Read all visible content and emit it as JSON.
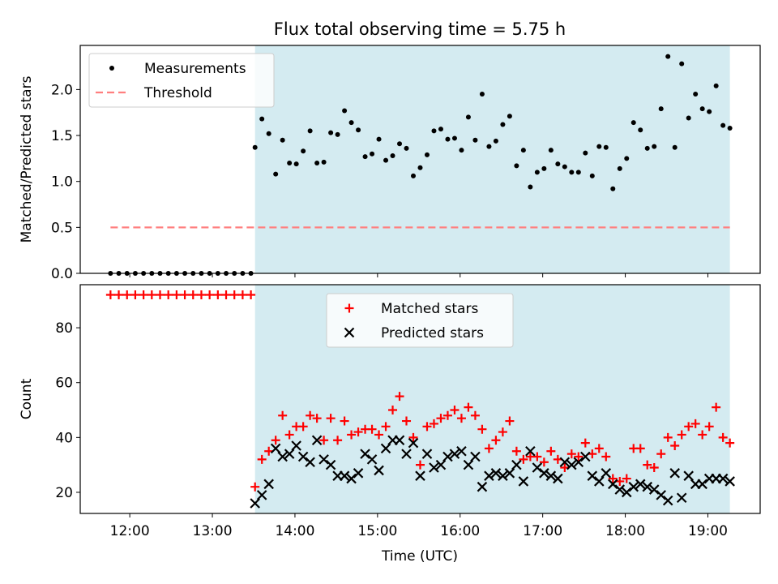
{
  "chart_data": {
    "type": "scatter",
    "title": "Flux total observing time = 5.75 h",
    "xlabel": "Time (UTC)",
    "x_tick_labels": [
      "12:00",
      "13:00",
      "14:00",
      "15:00",
      "16:00",
      "17:00",
      "18:00",
      "19:00"
    ],
    "x_ticks": [
      "12:00",
      "13:00",
      "14:00",
      "15:00",
      "16:00",
      "17:00",
      "18:00",
      "19:00"
    ],
    "xlim": [
      "11:24",
      "19:38"
    ],
    "shaded_interval": {
      "start": "13:31",
      "end": "19:16",
      "color": "#add8e6"
    },
    "colors": {
      "measurements": "#000000",
      "threshold": "#ff7f7f",
      "matched": "#ff0000",
      "predicted": "#000000",
      "shade": "#d4ebf1"
    },
    "panels": [
      {
        "ylabel": "Matched/Predicted stars",
        "ylim": [
          0,
          2.48
        ],
        "yticks": [
          0.0,
          0.5,
          1.0,
          1.5,
          2.0
        ],
        "ytick_labels": [
          "0.0",
          "0.5",
          "1.0",
          "1.5",
          "2.0"
        ],
        "legend_position": "upper-left",
        "series": [
          {
            "name": "Measurements",
            "kind": "points",
            "x": [
              "11:46",
              "11:52",
              "11:58",
              "12:04",
              "12:10",
              "12:16",
              "12:22",
              "12:28",
              "12:34",
              "12:40",
              "12:46",
              "12:52",
              "12:58",
              "13:04",
              "13:10",
              "13:16",
              "13:22",
              "13:28",
              "13:31",
              "13:36",
              "13:41",
              "13:46",
              "13:51",
              "13:56",
              "14:01",
              "14:06",
              "14:11",
              "14:16",
              "14:21",
              "14:26",
              "14:31",
              "14:36",
              "14:41",
              "14:46",
              "14:51",
              "14:56",
              "15:01",
              "15:06",
              "15:11",
              "15:16",
              "15:21",
              "15:26",
              "15:31",
              "15:36",
              "15:41",
              "15:46",
              "15:51",
              "15:56",
              "16:01",
              "16:06",
              "16:11",
              "16:16",
              "16:21",
              "16:26",
              "16:31",
              "16:36",
              "16:41",
              "16:46",
              "16:51",
              "16:56",
              "17:01",
              "17:06",
              "17:11",
              "17:16",
              "17:21",
              "17:26",
              "17:31",
              "17:36",
              "17:41",
              "17:46",
              "17:51",
              "17:56",
              "18:01",
              "18:06",
              "18:11",
              "18:16",
              "18:21",
              "18:26",
              "18:31",
              "18:36",
              "18:41",
              "18:46",
              "18:51",
              "18:56",
              "19:01",
              "19:06",
              "19:11",
              "19:16"
            ],
            "y": [
              0,
              0,
              0,
              0,
              0,
              0,
              0,
              0,
              0,
              0,
              0,
              0,
              0,
              0,
              0,
              0,
              0,
              0,
              1.37,
              1.68,
              1.52,
              1.08,
              1.45,
              1.2,
              1.19,
              1.33,
              1.55,
              1.2,
              1.21,
              1.53,
              1.51,
              1.77,
              1.64,
              1.56,
              1.27,
              1.3,
              1.46,
              1.23,
              1.28,
              1.41,
              1.36,
              1.06,
              1.15,
              1.29,
              1.55,
              1.57,
              1.46,
              1.47,
              1.34,
              1.7,
              1.45,
              1.95,
              1.38,
              1.44,
              1.62,
              1.71,
              1.17,
              1.34,
              0.94,
              1.1,
              1.14,
              1.34,
              1.19,
              1.16,
              1.1,
              1.1,
              1.31,
              1.06,
              1.38,
              1.37,
              0.92,
              1.14,
              1.25,
              1.64,
              1.56,
              1.36,
              1.38,
              1.79,
              2.36,
              1.37,
              2.28,
              1.69,
              1.95,
              1.79,
              1.76,
              2.04,
              1.61,
              1.58
            ]
          },
          {
            "name": "Threshold",
            "kind": "dashed-line",
            "x": [
              "11:46",
              "19:16"
            ],
            "y": [
              0.5,
              0.5
            ]
          }
        ]
      },
      {
        "ylabel": "Count",
        "ylim": [
          12.3,
          95.7
        ],
        "yticks": [
          20,
          40,
          60,
          80
        ],
        "ytick_labels": [
          "20",
          "40",
          "60",
          "80"
        ],
        "legend_position": "upper-center",
        "series": [
          {
            "name": "Matched stars",
            "kind": "plus",
            "x": [
              "11:46",
              "11:52",
              "11:58",
              "12:04",
              "12:10",
              "12:16",
              "12:22",
              "12:28",
              "12:34",
              "12:40",
              "12:46",
              "12:52",
              "12:58",
              "13:04",
              "13:10",
              "13:16",
              "13:22",
              "13:28",
              "13:31",
              "13:36",
              "13:41",
              "13:46",
              "13:51",
              "13:56",
              "14:01",
              "14:06",
              "14:11",
              "14:16",
              "14:21",
              "14:26",
              "14:31",
              "14:36",
              "14:41",
              "14:46",
              "14:51",
              "14:56",
              "15:01",
              "15:06",
              "15:11",
              "15:16",
              "15:21",
              "15:26",
              "15:31",
              "15:36",
              "15:41",
              "15:46",
              "15:51",
              "15:56",
              "16:01",
              "16:06",
              "16:11",
              "16:16",
              "16:21",
              "16:26",
              "16:31",
              "16:36",
              "16:41",
              "16:46",
              "16:51",
              "16:56",
              "17:01",
              "17:06",
              "17:11",
              "17:16",
              "17:21",
              "17:26",
              "17:31",
              "17:36",
              "17:41",
              "17:46",
              "17:51",
              "17:56",
              "18:01",
              "18:06",
              "18:11",
              "18:16",
              "18:21",
              "18:26",
              "18:31",
              "18:36",
              "18:41",
              "18:46",
              "18:51",
              "18:56",
              "19:01",
              "19:06",
              "19:11",
              "19:16"
            ],
            "y": [
              92,
              92,
              92,
              92,
              92,
              92,
              92,
              92,
              92,
              92,
              92,
              92,
              92,
              92,
              92,
              92,
              92,
              92,
              22,
              32,
              35,
              39,
              48,
              41,
              44,
              44,
              48,
              47,
              39,
              47,
              39,
              46,
              41,
              42,
              43,
              43,
              41,
              44,
              50,
              55,
              46,
              40,
              30,
              44,
              45,
              47,
              48,
              50,
              47,
              51,
              48,
              43,
              36,
              39,
              42,
              46,
              35,
              32,
              33,
              33,
              31,
              35,
              32,
              29,
              34,
              33,
              38,
              34,
              36,
              33,
              25,
              24,
              25,
              36,
              36,
              30,
              29,
              34,
              40,
              37,
              41,
              44,
              45,
              41,
              44,
              51,
              40,
              38
            ]
          },
          {
            "name": "Predicted stars",
            "kind": "cross",
            "x": [
              "13:31",
              "13:36",
              "13:41",
              "13:46",
              "13:51",
              "13:56",
              "14:01",
              "14:06",
              "14:11",
              "14:16",
              "14:21",
              "14:26",
              "14:31",
              "14:36",
              "14:41",
              "14:46",
              "14:51",
              "14:56",
              "15:01",
              "15:06",
              "15:11",
              "15:16",
              "15:21",
              "15:26",
              "15:31",
              "15:36",
              "15:41",
              "15:46",
              "15:51",
              "15:56",
              "16:01",
              "16:06",
              "16:11",
              "16:16",
              "16:21",
              "16:26",
              "16:31",
              "16:36",
              "16:41",
              "16:46",
              "16:51",
              "16:56",
              "17:01",
              "17:06",
              "17:11",
              "17:16",
              "17:21",
              "17:26",
              "17:31",
              "17:36",
              "17:41",
              "17:46",
              "17:51",
              "17:56",
              "18:01",
              "18:06",
              "18:11",
              "18:16",
              "18:21",
              "18:26",
              "18:31",
              "18:36",
              "18:41",
              "18:46",
              "18:51",
              "18:56",
              "19:01",
              "19:06",
              "19:11",
              "19:16"
            ],
            "y": [
              16,
              19,
              23,
              36,
              33,
              34,
              37,
              33,
              31,
              39,
              32,
              30,
              26,
              26,
              25,
              27,
              34,
              32,
              28,
              36,
              39,
              39,
              34,
              38,
              26,
              34,
              29,
              30,
              33,
              34,
              35,
              30,
              33,
              22,
              26,
              27,
              26,
              27,
              30,
              24,
              35,
              29,
              27,
              26,
              25,
              31,
              30,
              31,
              33,
              26,
              24,
              27,
              23,
              21,
              20,
              22,
              23,
              22,
              21,
              19,
              17,
              27,
              18,
              26,
              23,
              23,
              25,
              25,
              25,
              24
            ]
          }
        ]
      }
    ]
  }
}
